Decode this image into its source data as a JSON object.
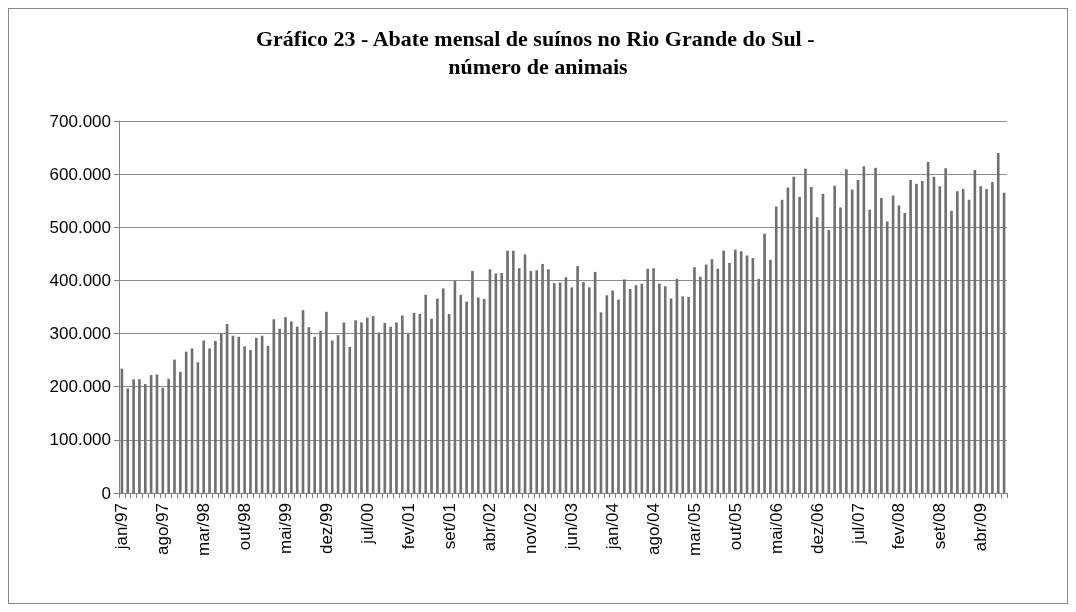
{
  "chart_data": {
    "type": "bar",
    "title": "Gráfico 23 - Abate mensal de suínos no Rio Grande do Sul - número de animais",
    "categories": [
      "jan/97",
      null,
      null,
      null,
      null,
      null,
      null,
      "ago/97",
      null,
      null,
      null,
      null,
      null,
      null,
      "mar/98",
      null,
      null,
      null,
      null,
      null,
      null,
      "out/98",
      null,
      null,
      null,
      null,
      null,
      null,
      "mai/99",
      null,
      null,
      null,
      null,
      null,
      null,
      "dez/99",
      null,
      null,
      null,
      null,
      null,
      null,
      "jul/00",
      null,
      null,
      null,
      null,
      null,
      null,
      "fev/01",
      null,
      null,
      null,
      null,
      null,
      null,
      "set/01",
      null,
      null,
      null,
      null,
      null,
      null,
      "abr/02",
      null,
      null,
      null,
      null,
      null,
      null,
      "nov/02",
      null,
      null,
      null,
      null,
      null,
      null,
      "jun/03",
      null,
      null,
      null,
      null,
      null,
      null,
      "jan/04",
      null,
      null,
      null,
      null,
      null,
      null,
      "ago/04",
      null,
      null,
      null,
      null,
      null,
      null,
      "mar/05",
      null,
      null,
      null,
      null,
      null,
      null,
      "out/05",
      null,
      null,
      null,
      null,
      null,
      null,
      "mai/06",
      null,
      null,
      null,
      null,
      null,
      null,
      "dez/06",
      null,
      null,
      null,
      null,
      null,
      null,
      "jul/07",
      null,
      null,
      null,
      null,
      null,
      null,
      "fev/08",
      null,
      null,
      null,
      null,
      null,
      null,
      "set/08",
      null,
      null,
      null,
      null,
      null,
      null,
      "abr/09",
      null,
      null,
      null,
      null
    ],
    "values": [
      234000,
      197000,
      214000,
      214000,
      205000,
      222000,
      223000,
      198000,
      215000,
      251000,
      228000,
      266000,
      272000,
      246000,
      287000,
      272000,
      286000,
      300000,
      318000,
      296000,
      294000,
      276000,
      269000,
      292000,
      296000,
      277000,
      327000,
      309000,
      331000,
      323000,
      313000,
      344000,
      312000,
      294000,
      305000,
      341000,
      287000,
      297000,
      321000,
      275000,
      325000,
      321000,
      330000,
      333000,
      302000,
      320000,
      313000,
      321000,
      334000,
      300000,
      339000,
      337000,
      373000,
      328000,
      366000,
      385000,
      337000,
      399000,
      373000,
      360000,
      418000,
      368000,
      365000,
      421000,
      413000,
      414000,
      456000,
      456000,
      423000,
      449000,
      418000,
      419000,
      431000,
      421000,
      395000,
      396000,
      406000,
      387000,
      427000,
      397000,
      387000,
      416000,
      340000,
      372000,
      381000,
      364000,
      402000,
      384000,
      391000,
      394000,
      422000,
      423000,
      394000,
      389000,
      366000,
      403000,
      370000,
      369000,
      425000,
      407000,
      430000,
      440000,
      422000,
      456000,
      433000,
      458000,
      455000,
      447000,
      442000,
      403000,
      488000,
      439000,
      539000,
      552000,
      575000,
      595000,
      557000,
      610000,
      576000,
      519000,
      563000,
      495000,
      578000,
      537000,
      609000,
      571000,
      589000,
      615000,
      533000,
      612000,
      555000,
      511000,
      560000,
      541000,
      527000,
      589000,
      582000,
      587000,
      623000,
      595000,
      577000,
      611000,
      531000,
      568000,
      572000,
      552000,
      608000,
      577000,
      572000,
      585000,
      640000,
      565000
    ],
    "color": "#707070",
    "ylim": [
      0,
      700000
    ],
    "yticks": [
      0,
      {
        "value": 100000,
        "label": "100.000"
      },
      {
        "value": 200000,
        "label": "200.000"
      },
      {
        "value": 300000,
        "label": "300.000"
      },
      {
        "value": 400000,
        "label": "400.000"
      },
      {
        "value": 500000,
        "label": "500.000"
      },
      {
        "value": 600000,
        "label": "600.000"
      },
      {
        "value": 700000,
        "label": "700.000"
      }
    ],
    "grid": "y"
  }
}
